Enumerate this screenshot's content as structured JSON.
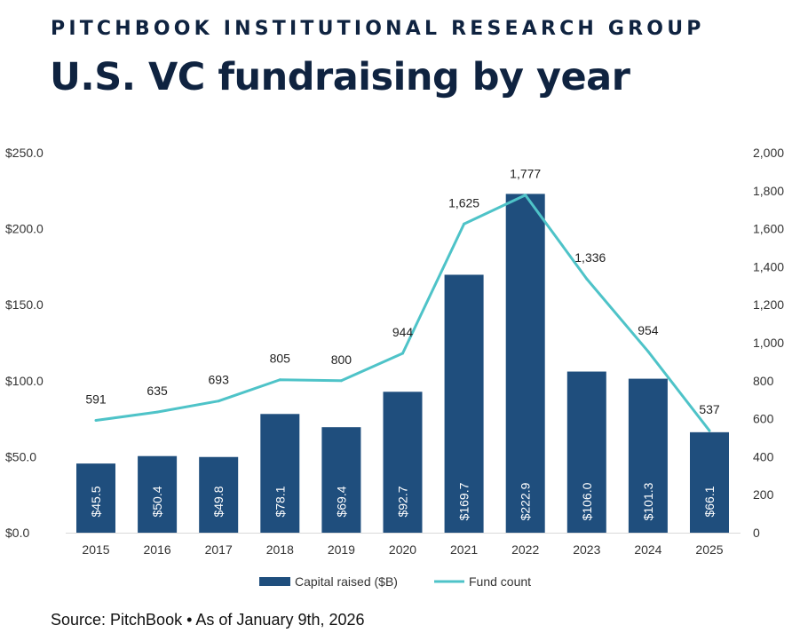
{
  "header": {
    "kicker": "PITCHBOOK INSTITUTIONAL RESEARCH GROUP",
    "title": "U.S. VC fundraising by year"
  },
  "footer": {
    "source": "Source: PitchBook • As of January 9th, 2026"
  },
  "colors": {
    "bar": "#1f4e7d",
    "line": "#4ec3c8",
    "title": "#0f2340"
  },
  "chart_data": {
    "type": "bar+line",
    "categories": [
      "2015",
      "2016",
      "2017",
      "2018",
      "2019",
      "2020",
      "2021",
      "2022",
      "2023",
      "2024",
      "2025"
    ],
    "series": [
      {
        "name": "Capital raised ($B)",
        "type": "bar",
        "axis": "left",
        "values": [
          45.5,
          50.4,
          49.8,
          78.1,
          69.4,
          92.7,
          169.7,
          222.9,
          106.0,
          101.3,
          66.1
        ],
        "labels": [
          "$45.5",
          "$50.4",
          "$49.8",
          "$78.1",
          "$69.4",
          "$92.7",
          "$169.7",
          "$222.9",
          "$106.0",
          "$101.3",
          "$66.1"
        ]
      },
      {
        "name": "Fund count",
        "type": "line",
        "axis": "right",
        "values": [
          591,
          635,
          693,
          805,
          800,
          944,
          1625,
          1777,
          1336,
          954,
          537
        ],
        "labels": [
          "591",
          "635",
          "693",
          "805",
          "800",
          "944",
          "1,625",
          "1,777",
          "1,336",
          "954",
          "537"
        ]
      }
    ],
    "y_left": {
      "range": [
        0,
        250
      ],
      "ticks": [
        "$0.0",
        "$50.0",
        "$100.0",
        "$150.0",
        "$200.0",
        "$250.0"
      ]
    },
    "y_right": {
      "range": [
        0,
        2000
      ],
      "ticks": [
        "0",
        "200",
        "400",
        "600",
        "800",
        "1,000",
        "1,200",
        "1,400",
        "1,600",
        "1,800",
        "2,000"
      ]
    },
    "grid": false,
    "legend": "bottom"
  }
}
